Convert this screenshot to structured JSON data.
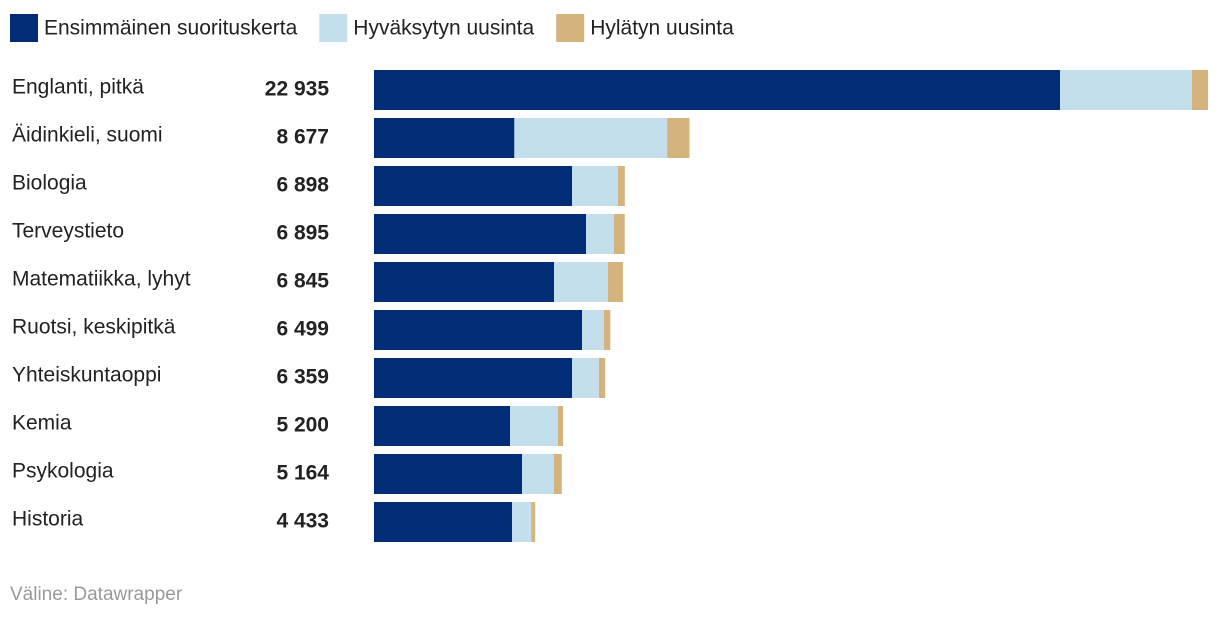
{
  "chart_data": {
    "type": "stacked-bar",
    "categories": [
      "Englanti, pitkä",
      "Äidinkieli, suomi",
      "Biologia",
      "Terveystieto",
      "Matematiikka, lyhyt",
      "Ruotsi, keskipitkä",
      "Yhteiskuntaoppi",
      "Kemia",
      "Psykologia",
      "Historia"
    ],
    "totals": [
      22935,
      8677,
      6898,
      6895,
      6845,
      6499,
      6359,
      5200,
      5164,
      4433
    ],
    "total_labels": [
      "22 935",
      "8 677",
      "6 898",
      "6 895",
      "6 845",
      "6 499",
      "6 359",
      "5 200",
      "5 164",
      "4 433"
    ],
    "series": [
      {
        "name": "Ensimmäinen suorituskerta",
        "color": "#012d77",
        "values": [
          18865,
          3860,
          5445,
          5830,
          4950,
          5720,
          5445,
          3740,
          4070,
          3795
        ]
      },
      {
        "name": "Hyväksytyn uusinta",
        "color": "#c4dfec",
        "values": [
          3630,
          4200,
          1265,
          770,
          1485,
          605,
          740,
          1320,
          874,
          528
        ]
      },
      {
        "name": "Hylätyn uusinta",
        "color": "#d5b37d",
        "values": [
          440,
          617,
          188,
          295,
          410,
          174,
          174,
          140,
          220,
          110
        ]
      }
    ],
    "source": "Väline: Datawrapper"
  }
}
